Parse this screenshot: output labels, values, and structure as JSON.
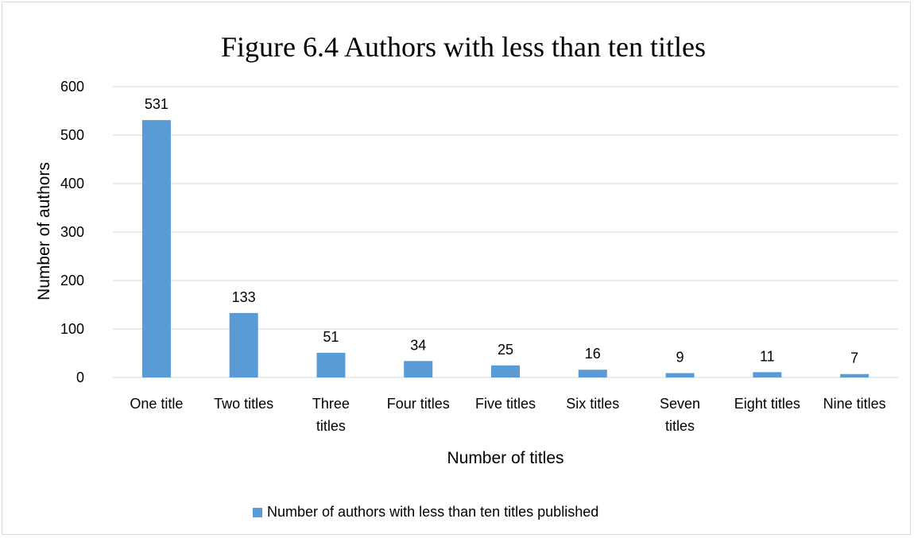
{
  "chart_data": {
    "type": "bar",
    "title": "Figure 6.4 Authors with less than ten titles",
    "xlabel": "Number of titles",
    "ylabel": "Number of authors",
    "categories": [
      [
        "One title"
      ],
      [
        "Two titles"
      ],
      [
        "Three",
        "titles"
      ],
      [
        "Four titles"
      ],
      [
        "Five titles"
      ],
      [
        "Six titles"
      ],
      [
        "Seven",
        "titles"
      ],
      [
        "Eight titles"
      ],
      [
        "Nine titles"
      ]
    ],
    "series": [
      {
        "name": "Number of authors with less than ten titles published",
        "values": [
          531,
          133,
          51,
          34,
          25,
          16,
          9,
          11,
          7
        ],
        "color": "#5b9bd5"
      }
    ],
    "ylim": [
      0,
      600
    ],
    "yticks": [
      0,
      100,
      200,
      300,
      400,
      500,
      600
    ],
    "grid": true,
    "gridColor": "#d9d9d9",
    "legend_position": "bottom"
  }
}
